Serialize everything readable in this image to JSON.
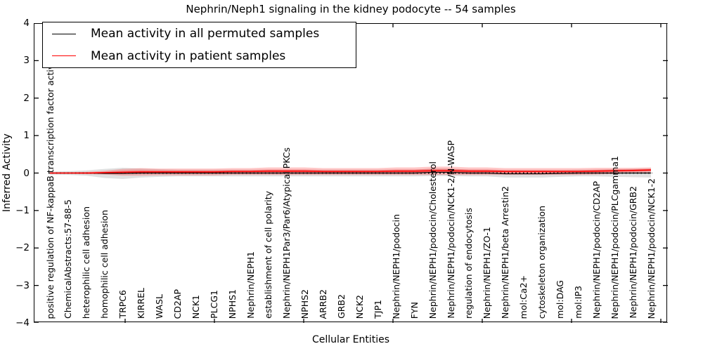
{
  "title": "Nephrin/Neph1 signaling in the kidney podocyte -- 54 samples",
  "legend": {
    "items": [
      {
        "label": "Mean activity in all permuted samples",
        "color": "#000000"
      },
      {
        "label": "Mean activity in patient samples",
        "color": "#ff0000"
      }
    ]
  },
  "axes": {
    "x": {
      "label": "Cellular Entities"
    },
    "y": {
      "label": "Inferred Activity",
      "min": -4,
      "max": 4,
      "tick_labels": [
        "4",
        "3",
        "2",
        "1",
        "0",
        "−1",
        "−2",
        "−3",
        "−4"
      ],
      "tick_values": [
        4,
        3,
        2,
        1,
        0,
        -1,
        -2,
        -3,
        -4
      ]
    }
  },
  "chart_data": {
    "type": "line",
    "title": "Nephrin/Neph1 signaling in the kidney podocyte -- 54 samples",
    "xlabel": "Cellular Entities",
    "ylabel": "Inferred Activity",
    "ylim": [
      -4,
      4
    ],
    "grid": false,
    "legend_position": "upper left",
    "zero_line": "black dotted line at y=0 across the data range",
    "x_tick_label_rotation": 90,
    "categories": [
      "positive regulation of NF-kappaB transcription factor activity",
      "ChemicalAbstracts:57-88-5",
      "heterophilic cell adhesion",
      "homophilic cell adhesion",
      "TRPC6",
      "KIRREL",
      "WASL",
      "CD2AP",
      "NCK1",
      "PLCG1",
      "NPHS1",
      "Nephrin/NEPH1",
      "establishment of cell polarity",
      "Nephrin/NEPH1Par3/Par6/Atypical PKCs",
      "NPHS2",
      "ARRB2",
      "GRB2",
      "NCK2",
      "TJP1",
      "Nephrin/NEPH1/podocin",
      "FYN",
      "Nephrin/NEPH1/podocin/Cholesterol",
      "Nephrin/NEPH1/podocin/NCK1-2/N-WASP",
      "regulation of endocytosis",
      "Nephrin/NEPH1/ZO-1",
      "Nephrin/NEPH1/beta Arrestin2",
      "mol:Ca2+",
      "cytoskeleton organization",
      "mol:DAG",
      "mol:IP3",
      "Nephrin/NEPH1/podocin/CD2AP",
      "Nephrin/NEPH1/podocin/PLCgamma1",
      "Nephrin/NEPH1/podocin/GRB2",
      "Nephrin/NEPH1/podocin/NCK1-2"
    ],
    "series": [
      {
        "name": "Mean activity in all permuted samples",
        "color": "#000000",
        "band_color": "#999999",
        "values": [
          0.0,
          0.0,
          0.0,
          -0.01,
          -0.01,
          0.0,
          0.0,
          0.0,
          0.0,
          0.0,
          0.0,
          0.0,
          0.0,
          0.0,
          0.0,
          0.0,
          0.0,
          0.0,
          0.0,
          0.0,
          0.0,
          0.02,
          0.02,
          0.0,
          0.0,
          -0.02,
          -0.02,
          -0.02,
          -0.01,
          0.0,
          0.0,
          0.0,
          0.0,
          0.0
        ],
        "band_halfwidth": [
          0.04,
          0.05,
          0.07,
          0.12,
          0.15,
          0.12,
          0.1,
          0.09,
          0.09,
          0.09,
          0.09,
          0.09,
          0.09,
          0.09,
          0.09,
          0.09,
          0.09,
          0.09,
          0.09,
          0.09,
          0.09,
          0.1,
          0.1,
          0.09,
          0.09,
          0.1,
          0.1,
          0.1,
          0.09,
          0.09,
          0.09,
          0.1,
          0.11,
          0.12
        ]
      },
      {
        "name": "Mean activity in patient samples",
        "color": "#ff0000",
        "band_color": "#ff0000",
        "values": [
          0.0,
          0.0,
          0.0,
          0.01,
          0.02,
          0.03,
          0.03,
          0.03,
          0.03,
          0.03,
          0.04,
          0.04,
          0.05,
          0.05,
          0.05,
          0.04,
          0.04,
          0.04,
          0.04,
          0.05,
          0.05,
          0.06,
          0.06,
          0.05,
          0.05,
          0.04,
          0.04,
          0.04,
          0.04,
          0.04,
          0.05,
          0.06,
          0.07,
          0.08
        ],
        "band_halfwidth": [
          0.02,
          0.02,
          0.03,
          0.05,
          0.09,
          0.1,
          0.09,
          0.09,
          0.09,
          0.09,
          0.09,
          0.09,
          0.1,
          0.1,
          0.1,
          0.09,
          0.09,
          0.09,
          0.09,
          0.1,
          0.1,
          0.11,
          0.11,
          0.1,
          0.1,
          0.09,
          0.09,
          0.09,
          0.09,
          0.09,
          0.09,
          0.08,
          0.07,
          0.07
        ]
      }
    ]
  }
}
